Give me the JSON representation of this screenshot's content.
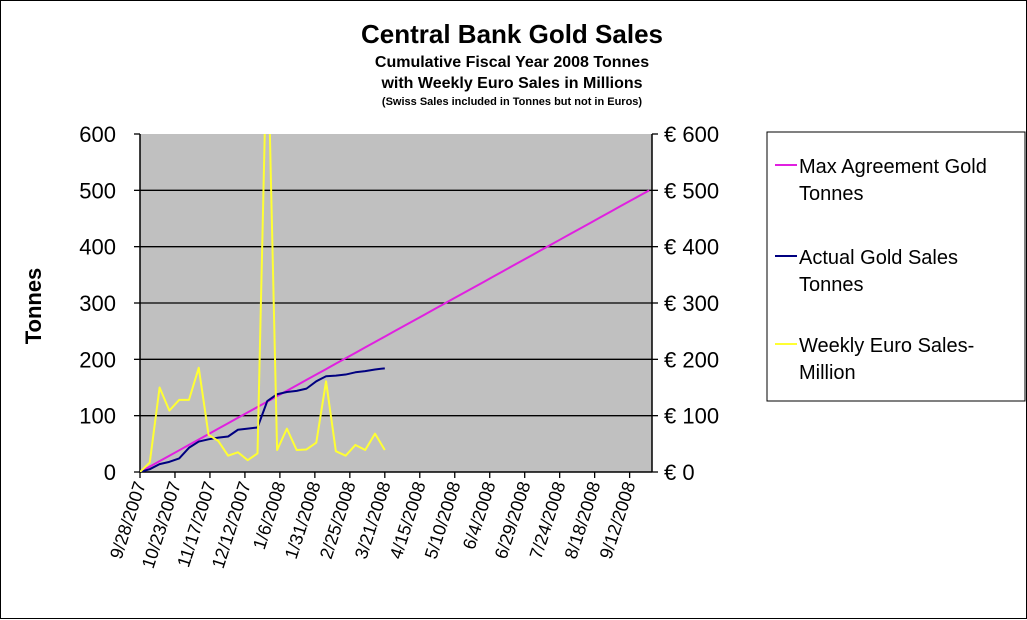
{
  "chart_data": {
    "type": "line",
    "title": "Central Bank Gold Sales",
    "subtitle_lines": [
      "Cumulative Fiscal Year 2008 Tonnes",
      "with Weekly Euro Sales in Millions",
      "(Swiss Sales included in Tonnes but not in Euros)"
    ],
    "ylabel": "Tonnes",
    "ylim": [
      0,
      600
    ],
    "y2lim": [
      0,
      600
    ],
    "y_ticks": [
      "0",
      "100",
      "200",
      "300",
      "400",
      "500",
      "600"
    ],
    "y2_ticks": [
      "€ 0",
      "€ 100",
      "€ 200",
      "€ 300",
      "€ 400",
      "€ 500",
      "€ 600"
    ],
    "x_unit": "days since 9/28/2007",
    "xlim_days": [
      0,
      366
    ],
    "x_tick_days": [
      0,
      25,
      50,
      75,
      100,
      125,
      150,
      175,
      200,
      225,
      250,
      275,
      300,
      325,
      350
    ],
    "x_tick_labels": [
      "9/28/2007",
      "10/23/2007",
      "11/17/2007",
      "12/12/2007",
      "1/6/2008",
      "1/31/2008",
      "2/25/2008",
      "3/21/2008",
      "4/15/2008",
      "5/10/2008",
      "6/4/2008",
      "6/29/2008",
      "7/24/2008",
      "8/18/2008",
      "9/12/2008"
    ],
    "grid": true,
    "legend_position": "right",
    "series": [
      {
        "name": "Max Agreement Gold Tonnes",
        "color": "#e020e0",
        "axis": "left",
        "step_days": 7,
        "values": [
          0,
          9.6,
          19.2,
          28.8,
          38.5,
          48.1,
          57.7,
          67.3,
          76.9,
          86.5,
          96.2,
          105.8,
          115.4,
          125,
          134.6,
          144.2,
          153.8,
          163.5,
          173.1,
          182.7,
          192.3,
          201.9,
          211.5,
          221.2,
          230.8,
          240.4,
          250,
          259.6,
          269.2,
          278.8,
          288.5,
          298.1,
          307.7,
          317.3,
          326.9,
          336.5,
          346.2,
          355.8,
          365.4,
          375,
          384.6,
          394.2,
          403.8,
          413.5,
          423.1,
          432.7,
          442.3,
          451.9,
          461.5,
          471.2,
          480.8,
          490.4,
          500
        ]
      },
      {
        "name": "Actual Gold Sales Tonnes",
        "color": "#000080",
        "axis": "left",
        "step_days": 7,
        "values": [
          0,
          5,
          14,
          18,
          24,
          43,
          54,
          58,
          61,
          63,
          75,
          77,
          79,
          126,
          138,
          142,
          144,
          148,
          161,
          170,
          171,
          173,
          177,
          179,
          182,
          184
        ]
      },
      {
        "name": "Weekly Euro Sales-Million",
        "color": "#ffff33",
        "axis": "right",
        "step_days": 7,
        "values": [
          0,
          17,
          150,
          109,
          128,
          128,
          185,
          66,
          55,
          29,
          35,
          21,
          33,
          800,
          39,
          77,
          39,
          40,
          52,
          161,
          37,
          29,
          48,
          39,
          68,
          39
        ]
      }
    ],
    "legend_lines": [
      [
        "Max Agreement Gold",
        "Tonnes"
      ],
      [
        "Actual Gold Sales",
        "Tonnes"
      ],
      [
        "Weekly Euro Sales-",
        "Million"
      ]
    ]
  }
}
